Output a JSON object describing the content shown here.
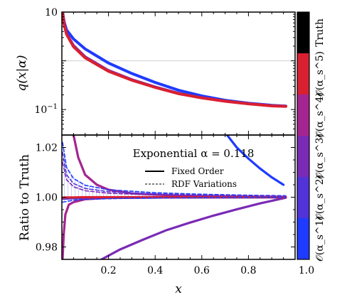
{
  "chart_data": {
    "type": "line",
    "annotation": "Exponential α = 0.118",
    "legend": {
      "placement": "top-right of lower panel",
      "entries": [
        {
          "label": "Fixed Order",
          "style": "solid"
        },
        {
          "label": "RDF Variations",
          "style": "dashed"
        }
      ]
    },
    "colorbar": {
      "labels": [
        "𝒪(α_s^1)",
        "𝒪(α_s^2)",
        "𝒪(α_s^3)",
        "𝒪(α_s^4)",
        "𝒪(α_s^5)",
        "Truth"
      ],
      "colors": [
        "#1f3bff",
        "#5133d8",
        "#7a2ab5",
        "#a52590",
        "#d92030",
        "#000000"
      ]
    },
    "top_panel": {
      "ylabel": "q(x|α)",
      "yscale": "log",
      "ylim": [
        0.03,
        10
      ],
      "y_ticks": [
        {
          "value": 0.1,
          "label": "10^−1"
        },
        {
          "value": 10,
          "label": "10"
        }
      ],
      "reference_line": 1.0,
      "series": [
        {
          "color": "#1f3bff",
          "x": [
            0.003,
            0.01,
            0.02,
            0.05,
            0.1,
            0.2,
            0.3,
            0.4,
            0.5,
            0.6,
            0.7,
            0.8,
            0.9,
            0.96
          ],
          "y": [
            10,
            6.2,
            4.3,
            2.8,
            1.75,
            0.9,
            0.55,
            0.36,
            0.25,
            0.19,
            0.155,
            0.135,
            0.122,
            0.118
          ]
        },
        {
          "color": "#7a2ab5",
          "x": [
            0.003,
            0.01,
            0.02,
            0.05,
            0.1,
            0.2,
            0.3,
            0.4,
            0.5,
            0.6,
            0.7,
            0.8,
            0.9,
            0.96
          ],
          "y": [
            10,
            5.6,
            3.6,
            2.05,
            1.2,
            0.63,
            0.41,
            0.29,
            0.215,
            0.175,
            0.15,
            0.132,
            0.12,
            0.117
          ]
        },
        {
          "color": "#d92030",
          "x": [
            0.003,
            0.01,
            0.02,
            0.05,
            0.1,
            0.2,
            0.3,
            0.4,
            0.5,
            0.6,
            0.7,
            0.8,
            0.9,
            0.96
          ],
          "y": [
            10,
            5.4,
            3.5,
            1.95,
            1.15,
            0.61,
            0.4,
            0.285,
            0.212,
            0.173,
            0.148,
            0.131,
            0.119,
            0.116
          ]
        }
      ]
    },
    "bottom_panel": {
      "xlabel": "x",
      "ylabel": "Ratio to Truth",
      "xlim": [
        0.0,
        1.0
      ],
      "ylim": [
        0.975,
        1.025
      ],
      "x_ticks": [
        0.2,
        0.4,
        0.6,
        0.8,
        1.0
      ],
      "y_ticks": [
        0.98,
        1.0,
        1.02
      ],
      "series": [
        {
          "style": "solid",
          "color": "#1f3bff",
          "x": [
            0.7,
            0.75,
            0.8,
            0.85,
            0.9,
            0.95
          ],
          "y": [
            1.026,
            1.02,
            1.0155,
            1.0115,
            1.008,
            1.005
          ]
        },
        {
          "style": "solid",
          "color": "#1f3bff",
          "x": [
            0.003,
            0.01,
            0.1,
            0.3,
            0.5,
            0.96
          ],
          "y": [
            0.9995,
            0.9995,
            0.9997,
            0.9998,
            0.9999,
            1.0
          ]
        },
        {
          "style": "solid",
          "color": "#5133d8",
          "x": [
            0.003,
            0.05,
            0.1,
            0.2,
            0.4,
            0.6,
            0.8,
            0.96
          ],
          "y": [
            0.9994,
            0.9996,
            0.9997,
            0.9998,
            0.9999,
            1.0,
            1.0,
            1.0
          ]
        },
        {
          "style": "solid",
          "color": "#7a2ab5",
          "x": [
            0.17,
            0.25,
            0.35,
            0.45,
            0.55,
            0.65,
            0.75,
            0.85,
            0.96
          ],
          "y": [
            0.975,
            0.979,
            0.983,
            0.9868,
            0.9898,
            0.9926,
            0.9951,
            0.9975,
            0.9998
          ]
        },
        {
          "style": "solid",
          "color": "#a52590",
          "x": [
            0.003,
            0.008,
            0.015,
            0.03,
            0.05,
            0.1,
            0.2,
            0.5,
            0.96
          ],
          "y": [
            0.975,
            0.985,
            0.993,
            0.997,
            0.998,
            0.9992,
            0.9997,
            0.9999,
            1.0
          ]
        },
        {
          "style": "solid",
          "color": "#a52590",
          "x": [
            0.05,
            0.07,
            0.1,
            0.15,
            0.2,
            0.3,
            0.5,
            0.7,
            0.96
          ],
          "y": [
            1.025,
            1.016,
            1.009,
            1.005,
            1.003,
            1.0015,
            1.0006,
            1.0003,
            1.0
          ]
        },
        {
          "style": "solid",
          "color": "#d92030",
          "x": [
            0.003,
            0.02,
            0.05,
            0.1,
            0.3,
            0.6,
            0.96
          ],
          "y": [
            0.9998,
            0.9999,
            0.9999,
            1.0,
            1.0,
            1.0,
            1.0
          ]
        },
        {
          "style": "dashed",
          "color": "#1f3bff",
          "x": [
            0.003,
            0.02,
            0.05,
            0.1,
            0.2,
            0.4,
            0.6,
            0.8,
            0.96
          ],
          "y": [
            1.022,
            1.012,
            1.0075,
            1.0048,
            1.003,
            1.0018,
            1.0012,
            1.0008,
            1.0006
          ]
        },
        {
          "style": "dashed",
          "color": "#5133d8",
          "x": [
            0.003,
            0.02,
            0.05,
            0.1,
            0.2,
            0.4,
            0.6,
            0.8,
            0.96
          ],
          "y": [
            1.018,
            1.009,
            1.0055,
            1.0035,
            1.0022,
            1.0013,
            1.0009,
            1.0006,
            1.0004
          ]
        },
        {
          "style": "dashed",
          "color": "#7a2ab5",
          "x": [
            0.003,
            0.02,
            0.05,
            0.1,
            0.2,
            0.4,
            0.6,
            0.8,
            0.96
          ],
          "y": [
            1.014,
            1.007,
            1.0042,
            1.0026,
            1.0016,
            1.0009,
            1.0006,
            1.0004,
            1.0003
          ]
        },
        {
          "style": "dashed",
          "color": "#1f3bff",
          "x": [
            0.003,
            0.05,
            0.1,
            0.3,
            0.6,
            0.96
          ],
          "y": [
            0.998,
            0.9988,
            0.9992,
            0.9996,
            0.9998,
            0.9999
          ]
        }
      ]
    }
  }
}
